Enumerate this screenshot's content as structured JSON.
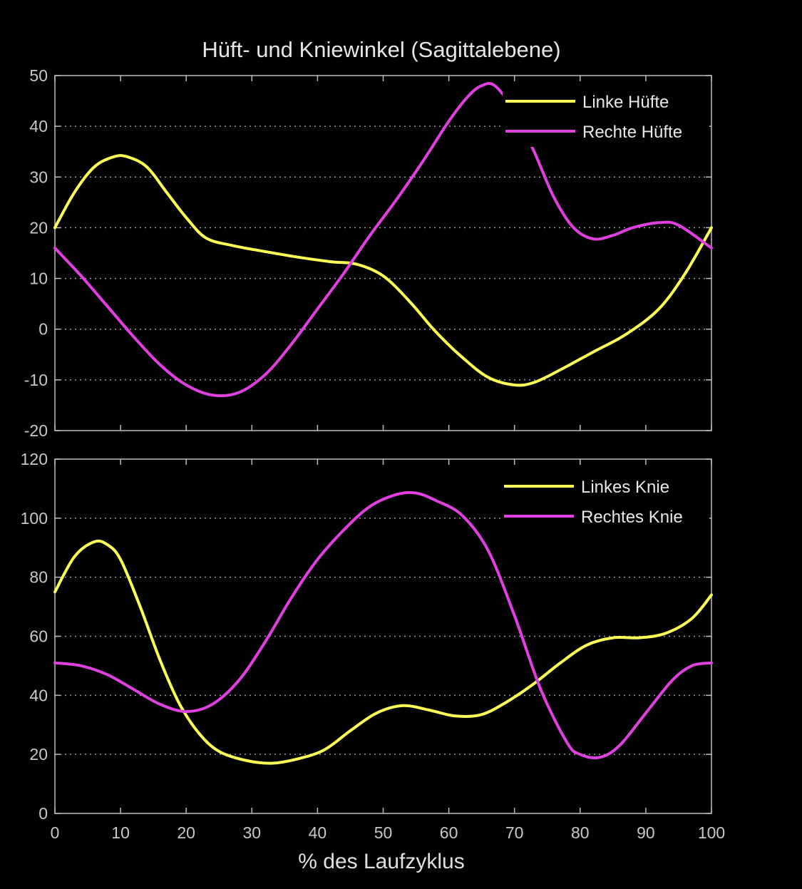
{
  "chart_data": [
    {
      "type": "line",
      "title": "Hüft- und Kniewinkel (Sagittalebene)",
      "xlabel": "",
      "ylabel": "",
      "xlim": [
        0,
        100
      ],
      "ylim": [
        -20,
        50
      ],
      "xticks": [
        0,
        10,
        20,
        30,
        40,
        50,
        60,
        70,
        80,
        90,
        100
      ],
      "yticks": [
        -20,
        -10,
        0,
        10,
        20,
        30,
        40,
        50
      ],
      "grid": true,
      "legend_position": "top-right",
      "series": [
        {
          "name": "Linke Hüfte",
          "color": "#ffff55",
          "x": [
            0,
            3,
            6,
            9,
            11,
            14,
            17,
            20,
            23,
            27,
            32,
            37,
            42,
            46,
            50,
            54,
            58,
            62,
            66,
            70,
            73,
            77,
            82,
            87,
            92,
            96,
            100
          ],
          "y": [
            20,
            27,
            32,
            34,
            34,
            32,
            27,
            22,
            18,
            16.5,
            15.3,
            14.2,
            13.3,
            12.8,
            10.5,
            5.5,
            -0.5,
            -5.5,
            -9.5,
            -11,
            -10.5,
            -8,
            -4.5,
            -1,
            4,
            11,
            20
          ]
        },
        {
          "name": "Rechte Hüfte",
          "color": "#e040e0",
          "x": [
            0,
            4,
            8,
            12,
            16,
            20,
            24,
            28,
            32,
            36,
            40,
            44,
            48,
            52,
            56,
            60,
            63,
            65,
            67,
            70,
            73,
            76,
            79,
            82,
            85,
            88,
            92,
            95,
            100
          ],
          "y": [
            16,
            10.5,
            4.5,
            -1.5,
            -7,
            -11,
            -13,
            -12.5,
            -9,
            -3,
            4,
            11,
            18.5,
            25.5,
            33,
            41,
            46,
            48,
            48,
            43,
            35,
            26,
            20,
            17.8,
            18.5,
            20,
            21,
            20.5,
            16
          ]
        }
      ]
    },
    {
      "type": "line",
      "title": "",
      "xlabel": "% des Laufzyklus",
      "ylabel": "",
      "xlim": [
        0,
        100
      ],
      "ylim": [
        0,
        120
      ],
      "xticks": [
        0,
        10,
        20,
        30,
        40,
        50,
        60,
        70,
        80,
        90,
        100
      ],
      "yticks": [
        0,
        20,
        40,
        60,
        80,
        100,
        120
      ],
      "grid": true,
      "legend_position": "top-right",
      "series": [
        {
          "name": "Linkes Knie",
          "color": "#ffff55",
          "x": [
            0,
            3,
            6,
            8,
            10,
            13,
            16,
            19,
            22,
            25,
            29,
            33,
            37,
            41,
            45,
            49,
            53,
            57,
            61,
            65,
            69,
            73,
            77,
            81,
            85,
            89,
            93,
            97,
            100
          ],
          "y": [
            75,
            87,
            92,
            91,
            86,
            70,
            52,
            37,
            27,
            21,
            18,
            17,
            18.5,
            21.5,
            28,
            34,
            36.5,
            35,
            33,
            33.5,
            38,
            44,
            51,
            57,
            59.5,
            59.5,
            61,
            66,
            74
          ]
        },
        {
          "name": "Rechtes Knie",
          "color": "#e040e0",
          "x": [
            0,
            4,
            8,
            12,
            16,
            20,
            24,
            28,
            32,
            36,
            40,
            44,
            48,
            52,
            55,
            58,
            62,
            66,
            70,
            74,
            78,
            80,
            83,
            86,
            90,
            94,
            97,
            100
          ],
          "y": [
            51,
            50,
            47,
            42,
            37,
            34.5,
            37,
            45,
            58,
            73,
            86,
            96,
            104,
            108,
            108.5,
            106,
            101,
            89,
            67,
            42,
            24,
            20,
            19,
            23,
            34,
            45,
            50,
            51
          ]
        }
      ]
    }
  ]
}
